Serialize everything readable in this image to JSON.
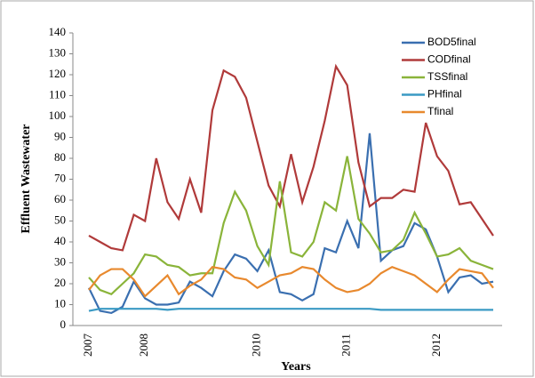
{
  "chart_data": {
    "type": "line",
    "xlabel": "Years",
    "ylabel": "Effluent Wastewater",
    "categories": [
      "2007",
      null,
      null,
      null,
      null,
      "2008",
      null,
      null,
      null,
      null,
      null,
      null,
      null,
      null,
      null,
      "2010",
      null,
      null,
      null,
      null,
      null,
      null,
      null,
      "2011",
      null,
      null,
      null,
      null,
      null,
      null,
      null,
      "2012",
      null,
      null,
      null,
      null,
      null
    ],
    "ylim": [
      0,
      140
    ],
    "yticks": [
      0,
      10,
      20,
      30,
      40,
      50,
      60,
      70,
      80,
      90,
      100,
      110,
      120,
      130,
      140
    ],
    "grid": false,
    "legend": "upper right",
    "series": [
      {
        "name": "BOD5final",
        "color": "#3a6fb0",
        "values": [
          18,
          7,
          6,
          9,
          21,
          13,
          10,
          10,
          11,
          21,
          18,
          14,
          26,
          34,
          32,
          26,
          36,
          16,
          15,
          12,
          15,
          37,
          35,
          50,
          37,
          92,
          31,
          36,
          38,
          49,
          46,
          33,
          16,
          23,
          24,
          20,
          21
        ]
      },
      {
        "name": "CODfinal",
        "color": "#b03a3a",
        "values": [
          43,
          40,
          37,
          36,
          53,
          50,
          80,
          59,
          51,
          70,
          54,
          103,
          122,
          119,
          109,
          88,
          67,
          57,
          82,
          59,
          76,
          98,
          124,
          115,
          78,
          57,
          61,
          61,
          65,
          64,
          97,
          81,
          74,
          58,
          59,
          51,
          43
        ]
      },
      {
        "name": "TSSfinal",
        "color": "#8ab43a",
        "values": [
          23,
          17,
          15,
          20,
          25,
          34,
          33,
          29,
          28,
          24,
          25,
          25,
          49,
          64,
          55,
          38,
          29,
          69,
          35,
          33,
          40,
          59,
          55,
          81,
          51,
          44,
          35,
          36,
          41,
          54,
          44,
          33,
          34,
          37,
          31,
          29,
          27
        ]
      },
      {
        "name": "PHfinal",
        "color": "#3a9ac4",
        "values": [
          7,
          8,
          8,
          8,
          8,
          8,
          8,
          7.5,
          8,
          8,
          8,
          8,
          8,
          8,
          8,
          8,
          8,
          8,
          8,
          8,
          8,
          8,
          8,
          8,
          8,
          8,
          7.5,
          7.5,
          7.5,
          7.5,
          7.5,
          7.5,
          7.5,
          7.5,
          7.5,
          7.5,
          7.5
        ]
      },
      {
        "name": "Tfinal",
        "color": "#e8892e",
        "values": [
          17,
          24,
          27,
          27,
          22,
          14,
          19,
          24,
          15,
          19,
          22,
          28,
          27,
          23,
          22,
          18,
          21,
          24,
          25,
          28,
          27,
          22,
          18,
          16,
          17,
          20,
          25,
          28,
          26,
          24,
          20,
          16,
          22,
          27,
          26,
          25,
          18
        ]
      }
    ]
  }
}
